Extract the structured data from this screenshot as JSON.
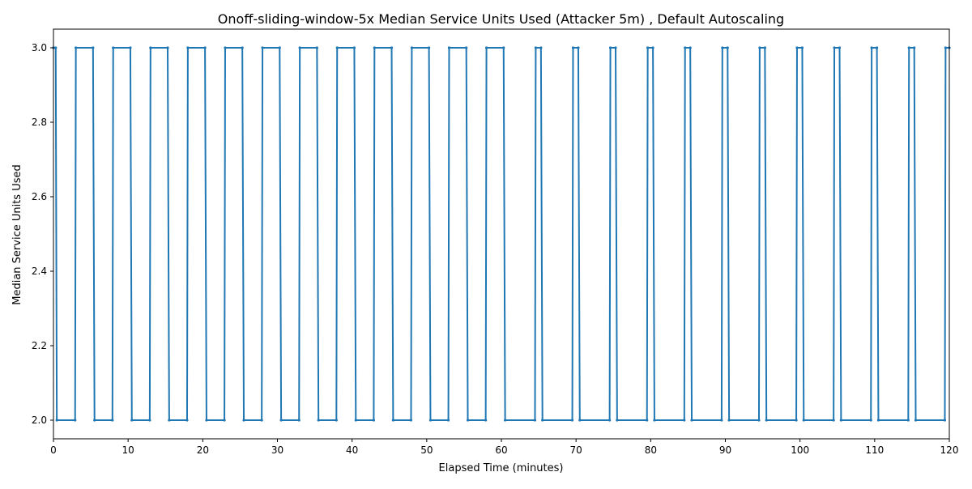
{
  "chart_data": {
    "type": "line",
    "title": "Onoff-sliding-window-5x Median Service Units Used (Attacker 5m) , Default Autoscaling",
    "xlabel": "Elapsed Time (minutes)",
    "ylabel": "Median Service Units Used",
    "xlim": [
      0,
      120
    ],
    "ylim": [
      1.95,
      3.05
    ],
    "xticks": [
      "0",
      "10",
      "20",
      "30",
      "40",
      "50",
      "60",
      "70",
      "80",
      "90",
      "100",
      "110",
      "120"
    ],
    "yticks": [
      "2.0",
      "2.2",
      "2.4",
      "2.6",
      "2.8",
      "3.0"
    ],
    "xtick_values": [
      0,
      10,
      20,
      30,
      40,
      50,
      60,
      70,
      80,
      90,
      100,
      110,
      120
    ],
    "ytick_values": [
      2.0,
      2.2,
      2.4,
      2.6,
      2.8,
      3.0
    ],
    "grid": false,
    "line_color": "#1f77b4",
    "series": [
      {
        "marker": "point",
        "x": [
          0,
          0.3,
          0.45,
          2.9,
          3.0,
          5.3,
          5.5,
          7.9,
          8.0,
          10.3,
          10.5,
          12.9,
          13.0,
          15.3,
          15.5,
          17.9,
          18.0,
          20.3,
          20.5,
          22.9,
          23.0,
          25.3,
          25.5,
          27.9,
          28.0,
          30.3,
          30.5,
          32.9,
          33.0,
          35.3,
          35.5,
          37.9,
          38.0,
          40.3,
          40.5,
          42.9,
          43.0,
          45.3,
          45.5,
          47.9,
          48.0,
          50.3,
          50.5,
          52.9,
          53.0,
          55.3,
          55.5,
          57.9,
          58.0,
          60.3,
          60.5,
          64.5,
          64.6,
          65.3,
          65.5,
          69.5,
          69.6,
          70.3,
          70.5,
          74.5,
          74.6,
          75.3,
          75.5,
          79.5,
          79.6,
          80.3,
          80.5,
          84.5,
          84.6,
          85.3,
          85.5,
          89.5,
          89.6,
          90.3,
          90.5,
          94.5,
          94.6,
          95.3,
          95.5,
          99.5,
          99.6,
          100.3,
          100.5,
          104.5,
          104.6,
          105.3,
          105.5,
          109.5,
          109.6,
          110.3,
          110.5,
          114.5,
          114.6,
          115.3,
          115.5,
          119.4,
          119.5,
          120
        ],
        "y": [
          3,
          3,
          2,
          2,
          3,
          3,
          2,
          2,
          3,
          3,
          2,
          2,
          3,
          3,
          2,
          2,
          3,
          3,
          2,
          2,
          3,
          3,
          2,
          2,
          3,
          3,
          2,
          2,
          3,
          3,
          2,
          2,
          3,
          3,
          2,
          2,
          3,
          3,
          2,
          2,
          3,
          3,
          2,
          2,
          3,
          3,
          2,
          2,
          3,
          3,
          2,
          2,
          3,
          3,
          2,
          2,
          3,
          3,
          2,
          2,
          3,
          3,
          2,
          2,
          3,
          3,
          2,
          2,
          3,
          3,
          2,
          2,
          3,
          3,
          2,
          2,
          3,
          3,
          2,
          2,
          3,
          3,
          2,
          2,
          3,
          3,
          2,
          2,
          3,
          3,
          2,
          2,
          3,
          3,
          2,
          2,
          3,
          3
        ]
      }
    ]
  }
}
